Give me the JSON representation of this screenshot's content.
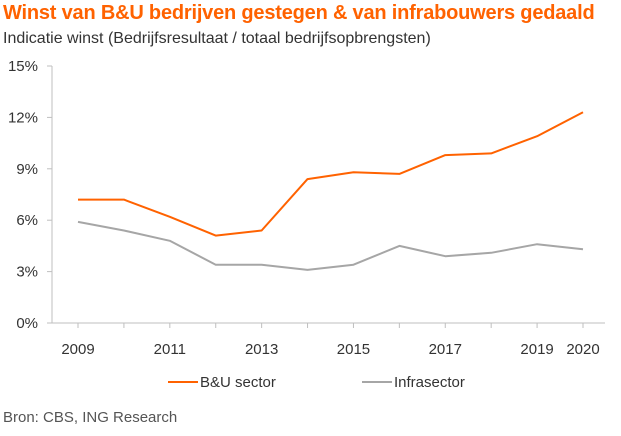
{
  "title": "Winst van B&U bedrijven gestegen & van infrabouwers gedaald",
  "subtitle": "Indicatie winst (Bedrijfsresultaat / totaal bedrijfsopbrengsten)",
  "source": "Bron: CBS, ING Research",
  "colors": {
    "bu": "#FF6200",
    "infra": "#A6A6A6",
    "axis": "#BFBFBF"
  },
  "chart_data": {
    "type": "line",
    "title": "Winst van B&U bedrijven gestegen & van infrabouwers gedaald",
    "subtitle": "Indicatie winst (Bedrijfsresultaat / totaal bedrijfsopbrengsten)",
    "x": [
      2009,
      2010,
      2011,
      2012,
      2013,
      2014,
      2015,
      2016,
      2017,
      2018,
      2019,
      2020
    ],
    "x_tick_labels": [
      "2009",
      "2011",
      "2013",
      "2015",
      "2017",
      "2019",
      "2020"
    ],
    "y_tick_labels": [
      "0%",
      "3%",
      "6%",
      "9%",
      "12%",
      "15%"
    ],
    "ylim": [
      0,
      15
    ],
    "grid": false,
    "legend_position": "bottom",
    "series": [
      {
        "name": "B&U sector",
        "color": "#FF6200",
        "values": [
          7.2,
          7.2,
          6.2,
          5.1,
          5.4,
          8.4,
          8.8,
          8.7,
          9.8,
          9.9,
          10.9,
          12.3
        ]
      },
      {
        "name": "Infrasector",
        "color": "#A6A6A6",
        "values": [
          5.9,
          5.4,
          4.8,
          3.4,
          3.4,
          3.1,
          3.4,
          4.5,
          3.9,
          4.1,
          4.6,
          4.3
        ]
      }
    ]
  }
}
